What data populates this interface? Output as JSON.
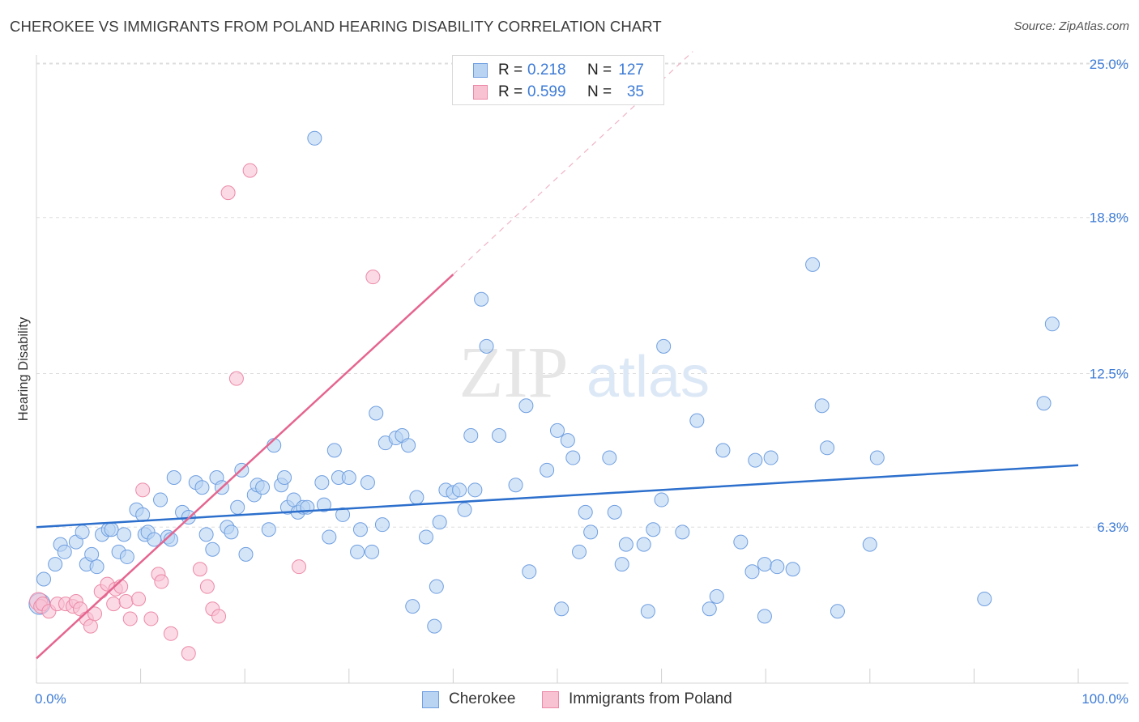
{
  "title": "CHEROKEE VS IMMIGRANTS FROM POLAND HEARING DISABILITY CORRELATION CHART",
  "source": "Source: ZipAtlas.com",
  "watermark": {
    "zip": "ZIP",
    "atlas": "atlas"
  },
  "colors": {
    "blue_fill": "#b9d3f3",
    "blue_stroke": "#6f9fe0",
    "blue_line": "#2c6fcc",
    "pink_fill": "#f8c2d3",
    "pink_stroke": "#ec8aa8",
    "pink_line": "#e5658f",
    "axis_text": "#3d7bd6",
    "grid": "#dddddd"
  },
  "legend_top": [
    {
      "r_label": "R =",
      "r_value": "0.218",
      "n_label": "N =",
      "n_value": "127"
    },
    {
      "r_label": "R =",
      "r_value": "0.599",
      "n_label": "N =",
      "n_value": "35"
    }
  ],
  "legend_bottom": [
    "Cherokee",
    "Immigrants from Poland"
  ],
  "chart_data": {
    "type": "scatter",
    "ylabel": "Hearing Disability",
    "x_tick_labels": [
      "0.0%",
      "100.0%"
    ],
    "y_tick_labels": [
      "25.0%",
      "18.8%",
      "12.5%",
      "6.3%"
    ],
    "y_ticks": [
      25.0,
      18.8,
      12.5,
      6.3
    ],
    "xlim": [
      0,
      100
    ],
    "ylim": [
      0,
      25.5
    ],
    "grid": true,
    "legend_position": "top-center",
    "series": [
      {
        "name": "Cherokee",
        "R": 0.218,
        "N": 127,
        "trend": {
          "x": [
            0,
            100
          ],
          "y": [
            6.3,
            8.8
          ]
        },
        "points": [
          [
            0.3,
            3.2
          ],
          [
            0.7,
            4.2
          ],
          [
            1.8,
            4.8
          ],
          [
            2.3,
            5.6
          ],
          [
            2.7,
            5.3
          ],
          [
            3.8,
            5.7
          ],
          [
            4.4,
            6.1
          ],
          [
            4.8,
            4.8
          ],
          [
            5.3,
            5.2
          ],
          [
            5.8,
            4.7
          ],
          [
            6.3,
            6.0
          ],
          [
            6.9,
            6.2
          ],
          [
            7.2,
            6.2
          ],
          [
            7.9,
            5.3
          ],
          [
            8.4,
            6.0
          ],
          [
            8.7,
            5.1
          ],
          [
            9.6,
            7.0
          ],
          [
            10.2,
            6.8
          ],
          [
            10.4,
            6.0
          ],
          [
            10.7,
            6.1
          ],
          [
            11.3,
            5.8
          ],
          [
            11.9,
            7.4
          ],
          [
            12.6,
            5.9
          ],
          [
            12.9,
            5.8
          ],
          [
            13.2,
            8.3
          ],
          [
            14.0,
            6.9
          ],
          [
            14.6,
            6.7
          ],
          [
            15.3,
            8.1
          ],
          [
            15.9,
            7.9
          ],
          [
            16.3,
            6.0
          ],
          [
            16.9,
            5.4
          ],
          [
            17.3,
            8.3
          ],
          [
            17.8,
            7.9
          ],
          [
            18.3,
            6.3
          ],
          [
            18.7,
            6.1
          ],
          [
            19.3,
            7.1
          ],
          [
            19.7,
            8.6
          ],
          [
            20.1,
            5.2
          ],
          [
            20.9,
            7.6
          ],
          [
            21.2,
            8.0
          ],
          [
            21.7,
            7.9
          ],
          [
            22.3,
            6.2
          ],
          [
            22.8,
            9.6
          ],
          [
            23.5,
            8.0
          ],
          [
            23.8,
            8.3
          ],
          [
            24.1,
            7.1
          ],
          [
            24.7,
            7.4
          ],
          [
            25.1,
            6.9
          ],
          [
            25.6,
            7.1
          ],
          [
            26.0,
            7.1
          ],
          [
            26.7,
            22.0
          ],
          [
            27.4,
            8.1
          ],
          [
            27.6,
            7.2
          ],
          [
            28.1,
            5.9
          ],
          [
            28.6,
            9.4
          ],
          [
            29.0,
            8.3
          ],
          [
            29.4,
            6.8
          ],
          [
            30.0,
            8.3
          ],
          [
            30.8,
            5.3
          ],
          [
            31.1,
            6.2
          ],
          [
            31.8,
            8.1
          ],
          [
            32.2,
            5.3
          ],
          [
            32.6,
            10.9
          ],
          [
            33.2,
            6.4
          ],
          [
            33.5,
            9.7
          ],
          [
            34.5,
            9.9
          ],
          [
            35.1,
            10.0
          ],
          [
            35.7,
            9.6
          ],
          [
            36.1,
            3.1
          ],
          [
            36.5,
            7.5
          ],
          [
            37.4,
            5.9
          ],
          [
            38.2,
            2.3
          ],
          [
            38.4,
            3.9
          ],
          [
            38.7,
            6.5
          ],
          [
            39.3,
            7.8
          ],
          [
            40.0,
            7.7
          ],
          [
            40.6,
            7.8
          ],
          [
            41.1,
            7.0
          ],
          [
            41.7,
            10.0
          ],
          [
            42.1,
            7.8
          ],
          [
            42.7,
            15.5
          ],
          [
            43.2,
            13.6
          ],
          [
            44.4,
            10.0
          ],
          [
            46.0,
            8.0
          ],
          [
            47.0,
            11.2
          ],
          [
            47.3,
            4.5
          ],
          [
            49.0,
            8.6
          ],
          [
            50.0,
            10.2
          ],
          [
            50.4,
            3.0
          ],
          [
            51.0,
            9.8
          ],
          [
            51.5,
            9.1
          ],
          [
            52.1,
            5.3
          ],
          [
            52.7,
            6.9
          ],
          [
            53.2,
            6.1
          ],
          [
            55.0,
            9.1
          ],
          [
            55.5,
            6.9
          ],
          [
            56.2,
            4.8
          ],
          [
            56.6,
            5.6
          ],
          [
            58.3,
            5.6
          ],
          [
            58.7,
            2.9
          ],
          [
            59.2,
            6.2
          ],
          [
            60.0,
            7.4
          ],
          [
            60.2,
            13.6
          ],
          [
            62.0,
            6.1
          ],
          [
            63.4,
            10.6
          ],
          [
            64.6,
            3.0
          ],
          [
            65.3,
            3.5
          ],
          [
            65.9,
            9.4
          ],
          [
            67.6,
            5.7
          ],
          [
            68.7,
            4.5
          ],
          [
            69.0,
            9.0
          ],
          [
            69.9,
            2.7
          ],
          [
            69.9,
            4.8
          ],
          [
            70.5,
            9.1
          ],
          [
            71.1,
            4.7
          ],
          [
            72.6,
            4.6
          ],
          [
            74.5,
            16.9
          ],
          [
            75.4,
            11.2
          ],
          [
            75.9,
            9.5
          ],
          [
            76.9,
            2.9
          ],
          [
            80.0,
            5.6
          ],
          [
            80.7,
            9.1
          ],
          [
            91.0,
            3.4
          ],
          [
            96.7,
            11.3
          ],
          [
            97.5,
            14.5
          ]
        ]
      },
      {
        "name": "Immigrants from Poland",
        "R": 0.599,
        "N": 35,
        "trend": {
          "x": [
            0,
            40
          ],
          "y": [
            1.0,
            16.5
          ]
        },
        "trend_dashed_extension": {
          "x": [
            40,
            63
          ],
          "y": [
            16.5,
            25.5
          ]
        },
        "points": [
          [
            0.2,
            3.3
          ],
          [
            0.4,
            3.1
          ],
          [
            0.6,
            3.2
          ],
          [
            1.2,
            2.9
          ],
          [
            2.0,
            3.2
          ],
          [
            2.8,
            3.2
          ],
          [
            3.5,
            3.1
          ],
          [
            3.8,
            3.3
          ],
          [
            4.2,
            3.0
          ],
          [
            4.8,
            2.6
          ],
          [
            5.2,
            2.3
          ],
          [
            5.6,
            2.8
          ],
          [
            6.2,
            3.7
          ],
          [
            6.8,
            4.0
          ],
          [
            7.4,
            3.2
          ],
          [
            7.6,
            3.8
          ],
          [
            8.1,
            3.9
          ],
          [
            8.6,
            3.3
          ],
          [
            9.0,
            2.6
          ],
          [
            9.8,
            3.4
          ],
          [
            10.2,
            7.8
          ],
          [
            11.0,
            2.6
          ],
          [
            11.7,
            4.4
          ],
          [
            12.0,
            4.1
          ],
          [
            12.9,
            2.0
          ],
          [
            14.6,
            1.2
          ],
          [
            15.7,
            4.6
          ],
          [
            16.4,
            3.9
          ],
          [
            16.9,
            3.0
          ],
          [
            17.5,
            2.7
          ],
          [
            18.4,
            19.8
          ],
          [
            19.2,
            12.3
          ],
          [
            20.5,
            20.7
          ],
          [
            25.2,
            4.7
          ],
          [
            32.3,
            16.4
          ]
        ]
      }
    ]
  }
}
